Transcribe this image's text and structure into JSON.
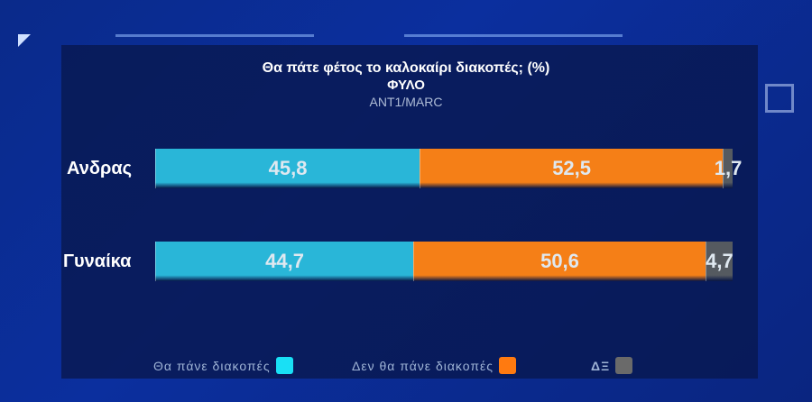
{
  "chart_data": {
    "type": "bar",
    "stacked": true,
    "orientation": "horizontal",
    "title": "Θα πάτε φέτος το καλοκαίρι διακοπές; (%)",
    "subtitle": "ΦΥΛΟ",
    "source": "ANT1/MARC",
    "categories": [
      "Ανδρας",
      "Γυναίκα"
    ],
    "series": [
      {
        "name": "Θα πάνε διακοπές",
        "color": "#29b6d8",
        "swatch": "#19e0f5",
        "values": [
          45.8,
          44.7
        ],
        "labels": [
          "45,8",
          "44,7"
        ]
      },
      {
        "name": "Δεν θα πάνε διακοπές",
        "color": "#f57f17",
        "swatch": "#ff7a10",
        "values": [
          52.5,
          50.6
        ],
        "labels": [
          "52,5",
          "50,6"
        ]
      },
      {
        "name": "ΔΞ",
        "color": "#555a60",
        "swatch": "#6a6a6a",
        "values": [
          1.7,
          4.7
        ],
        "labels": [
          "1,7",
          "4,7"
        ]
      }
    ],
    "xlim": [
      0,
      100
    ],
    "legend": "bottom"
  }
}
